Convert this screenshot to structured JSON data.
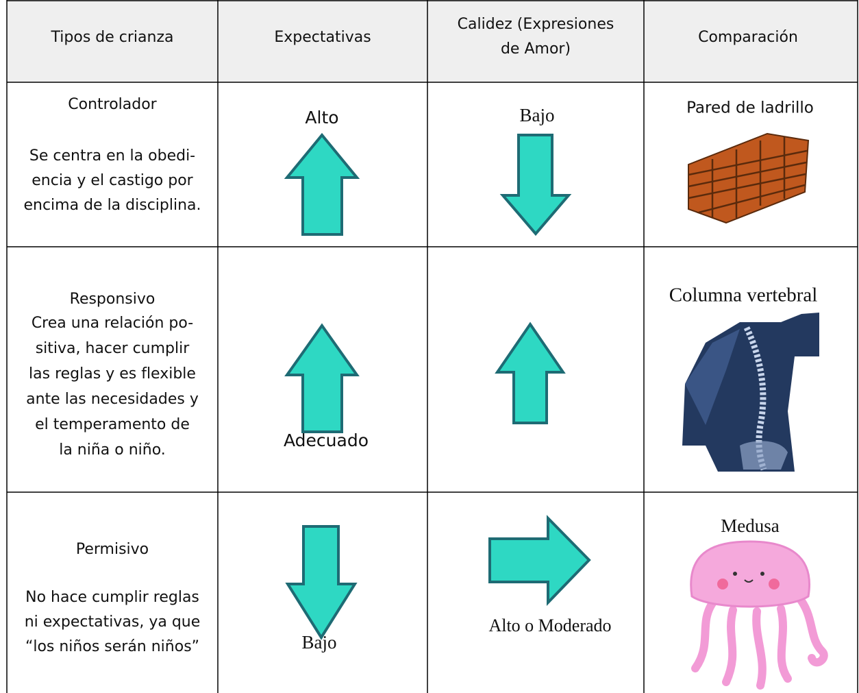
{
  "table": {
    "header": [
      [
        "Tipos de crianza"
      ],
      [
        "Expectativas"
      ],
      [
        "Calidez (Expresiones",
        "de Amor)"
      ],
      [
        "Comparación"
      ]
    ],
    "rows": [
      {
        "style": "Controlador",
        "description": [
          "Se centra en la obedi-",
          "encia y el castigo por",
          "encima de la disciplina."
        ],
        "expectations": "Alto",
        "warmth": "Bajo",
        "comparison": "Pared de ladrillo"
      },
      {
        "style": "Responsivo",
        "description": [
          "Crea una relación po-",
          "sitiva, hacer cumplir",
          "las reglas y es flexible",
          "ante las necesidades y",
          "el temperamento de",
          "la niña o niño."
        ],
        "expectations": "Adecuado",
        "comparison": "Columna vertebral"
      },
      {
        "style": "Permisivo",
        "description": [
          "No hace cumplir reglas",
          "ni expectativas, ya que",
          "“los niños serán niños”"
        ],
        "expectations": "Bajo",
        "warmth": "Alto o Moderado",
        "comparison": "Medusa"
      }
    ]
  }
}
